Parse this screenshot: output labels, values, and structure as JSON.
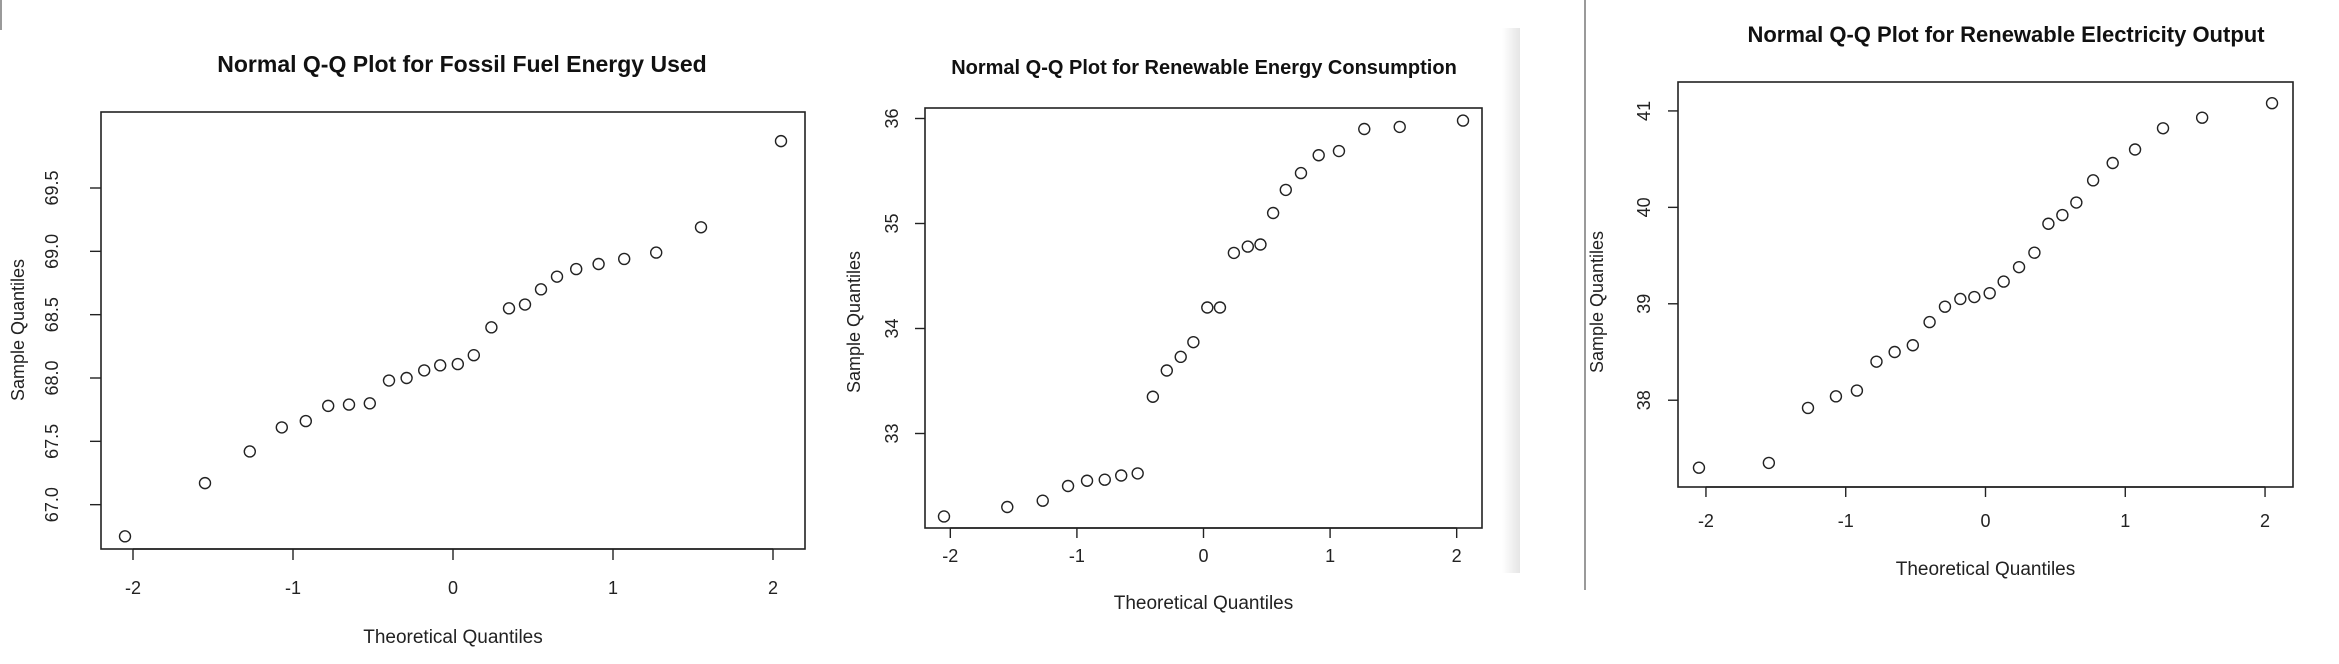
{
  "chart_data": [
    {
      "type": "scatter",
      "title": "Normal Q-Q Plot for Fossil Fuel Energy Used",
      "xlabel": "Theoretical Quantiles",
      "ylabel": "Sample Quantiles",
      "xlim": [
        -2.2,
        2.2
      ],
      "ylim": [
        66.65,
        70.1
      ],
      "xticks": [
        "-2",
        "-1",
        "0",
        "1",
        "2"
      ],
      "xtick_values": [
        -2,
        -1,
        0,
        1,
        2
      ],
      "yticks": [
        "67.0",
        "67.5",
        "68.0",
        "68.5",
        "69.0",
        "69.5"
      ],
      "ytick_values": [
        67.0,
        67.5,
        68.0,
        68.5,
        69.0,
        69.5
      ],
      "x": [
        -2.05,
        -1.55,
        -1.27,
        -1.07,
        -0.92,
        -0.78,
        -0.65,
        -0.52,
        -0.4,
        -0.29,
        -0.18,
        -0.08,
        0.03,
        0.13,
        0.24,
        0.35,
        0.45,
        0.55,
        0.65,
        0.77,
        0.91,
        1.07,
        1.27,
        1.55,
        2.05
      ],
      "y": [
        66.75,
        67.17,
        67.42,
        67.61,
        67.66,
        67.78,
        67.79,
        67.8,
        67.98,
        68.0,
        68.06,
        68.1,
        68.11,
        68.18,
        68.4,
        68.55,
        68.58,
        68.7,
        68.8,
        68.86,
        68.9,
        68.94,
        68.99,
        69.19,
        69.87
      ],
      "grid": false
    },
    {
      "type": "scatter",
      "title": "Normal Q-Q Plot for Renewable Energy Consumption",
      "xlabel": "Theoretical Quantiles",
      "ylabel": "Sample Quantiles",
      "xlim": [
        -2.2,
        2.2
      ],
      "ylim": [
        32.1,
        36.1
      ],
      "xticks": [
        "-2",
        "-1",
        "0",
        "1",
        "2"
      ],
      "xtick_values": [
        -2,
        -1,
        0,
        1,
        2
      ],
      "yticks": [
        "33",
        "34",
        "35",
        "36"
      ],
      "ytick_values": [
        33,
        34,
        35,
        36
      ],
      "x": [
        -2.05,
        -1.55,
        -1.27,
        -1.07,
        -0.92,
        -0.78,
        -0.65,
        -0.52,
        -0.4,
        -0.29,
        -0.18,
        -0.08,
        0.03,
        0.13,
        0.24,
        0.35,
        0.45,
        0.55,
        0.65,
        0.77,
        0.91,
        1.07,
        1.27,
        1.55,
        2.05
      ],
      "y": [
        32.21,
        32.3,
        32.36,
        32.5,
        32.55,
        32.56,
        32.6,
        32.62,
        33.35,
        33.6,
        33.73,
        33.87,
        34.2,
        34.2,
        34.72,
        34.78,
        34.8,
        35.1,
        35.32,
        35.48,
        35.65,
        35.69,
        35.9,
        35.92,
        35.98
      ],
      "grid": false
    },
    {
      "type": "scatter",
      "title": "Normal Q-Q Plot for Renewable Electricity Output",
      "xlabel": "Theoretical Quantiles",
      "ylabel": "Sample Quantiles",
      "xlim": [
        -2.2,
        2.2
      ],
      "ylim": [
        37.1,
        41.3
      ],
      "xticks": [
        "-2",
        "-1",
        "0",
        "1",
        "2"
      ],
      "xtick_values": [
        -2,
        -1,
        0,
        1,
        2
      ],
      "yticks": [
        "38",
        "39",
        "40",
        "41"
      ],
      "ytick_values": [
        38,
        39,
        40,
        41
      ],
      "x": [
        -2.05,
        -1.55,
        -1.27,
        -1.07,
        -0.92,
        -0.78,
        -0.65,
        -0.52,
        -0.4,
        -0.29,
        -0.18,
        -0.08,
        0.03,
        0.13,
        0.24,
        0.35,
        0.45,
        0.55,
        0.65,
        0.77,
        0.91,
        1.07,
        1.27,
        1.55,
        2.05
      ],
      "y": [
        37.3,
        37.35,
        37.92,
        38.04,
        38.1,
        38.4,
        38.5,
        38.57,
        38.81,
        38.97,
        39.05,
        39.07,
        39.11,
        39.23,
        39.38,
        39.53,
        39.83,
        39.92,
        40.05,
        40.28,
        40.46,
        40.6,
        40.82,
        40.93,
        41.08
      ],
      "grid": false
    }
  ]
}
